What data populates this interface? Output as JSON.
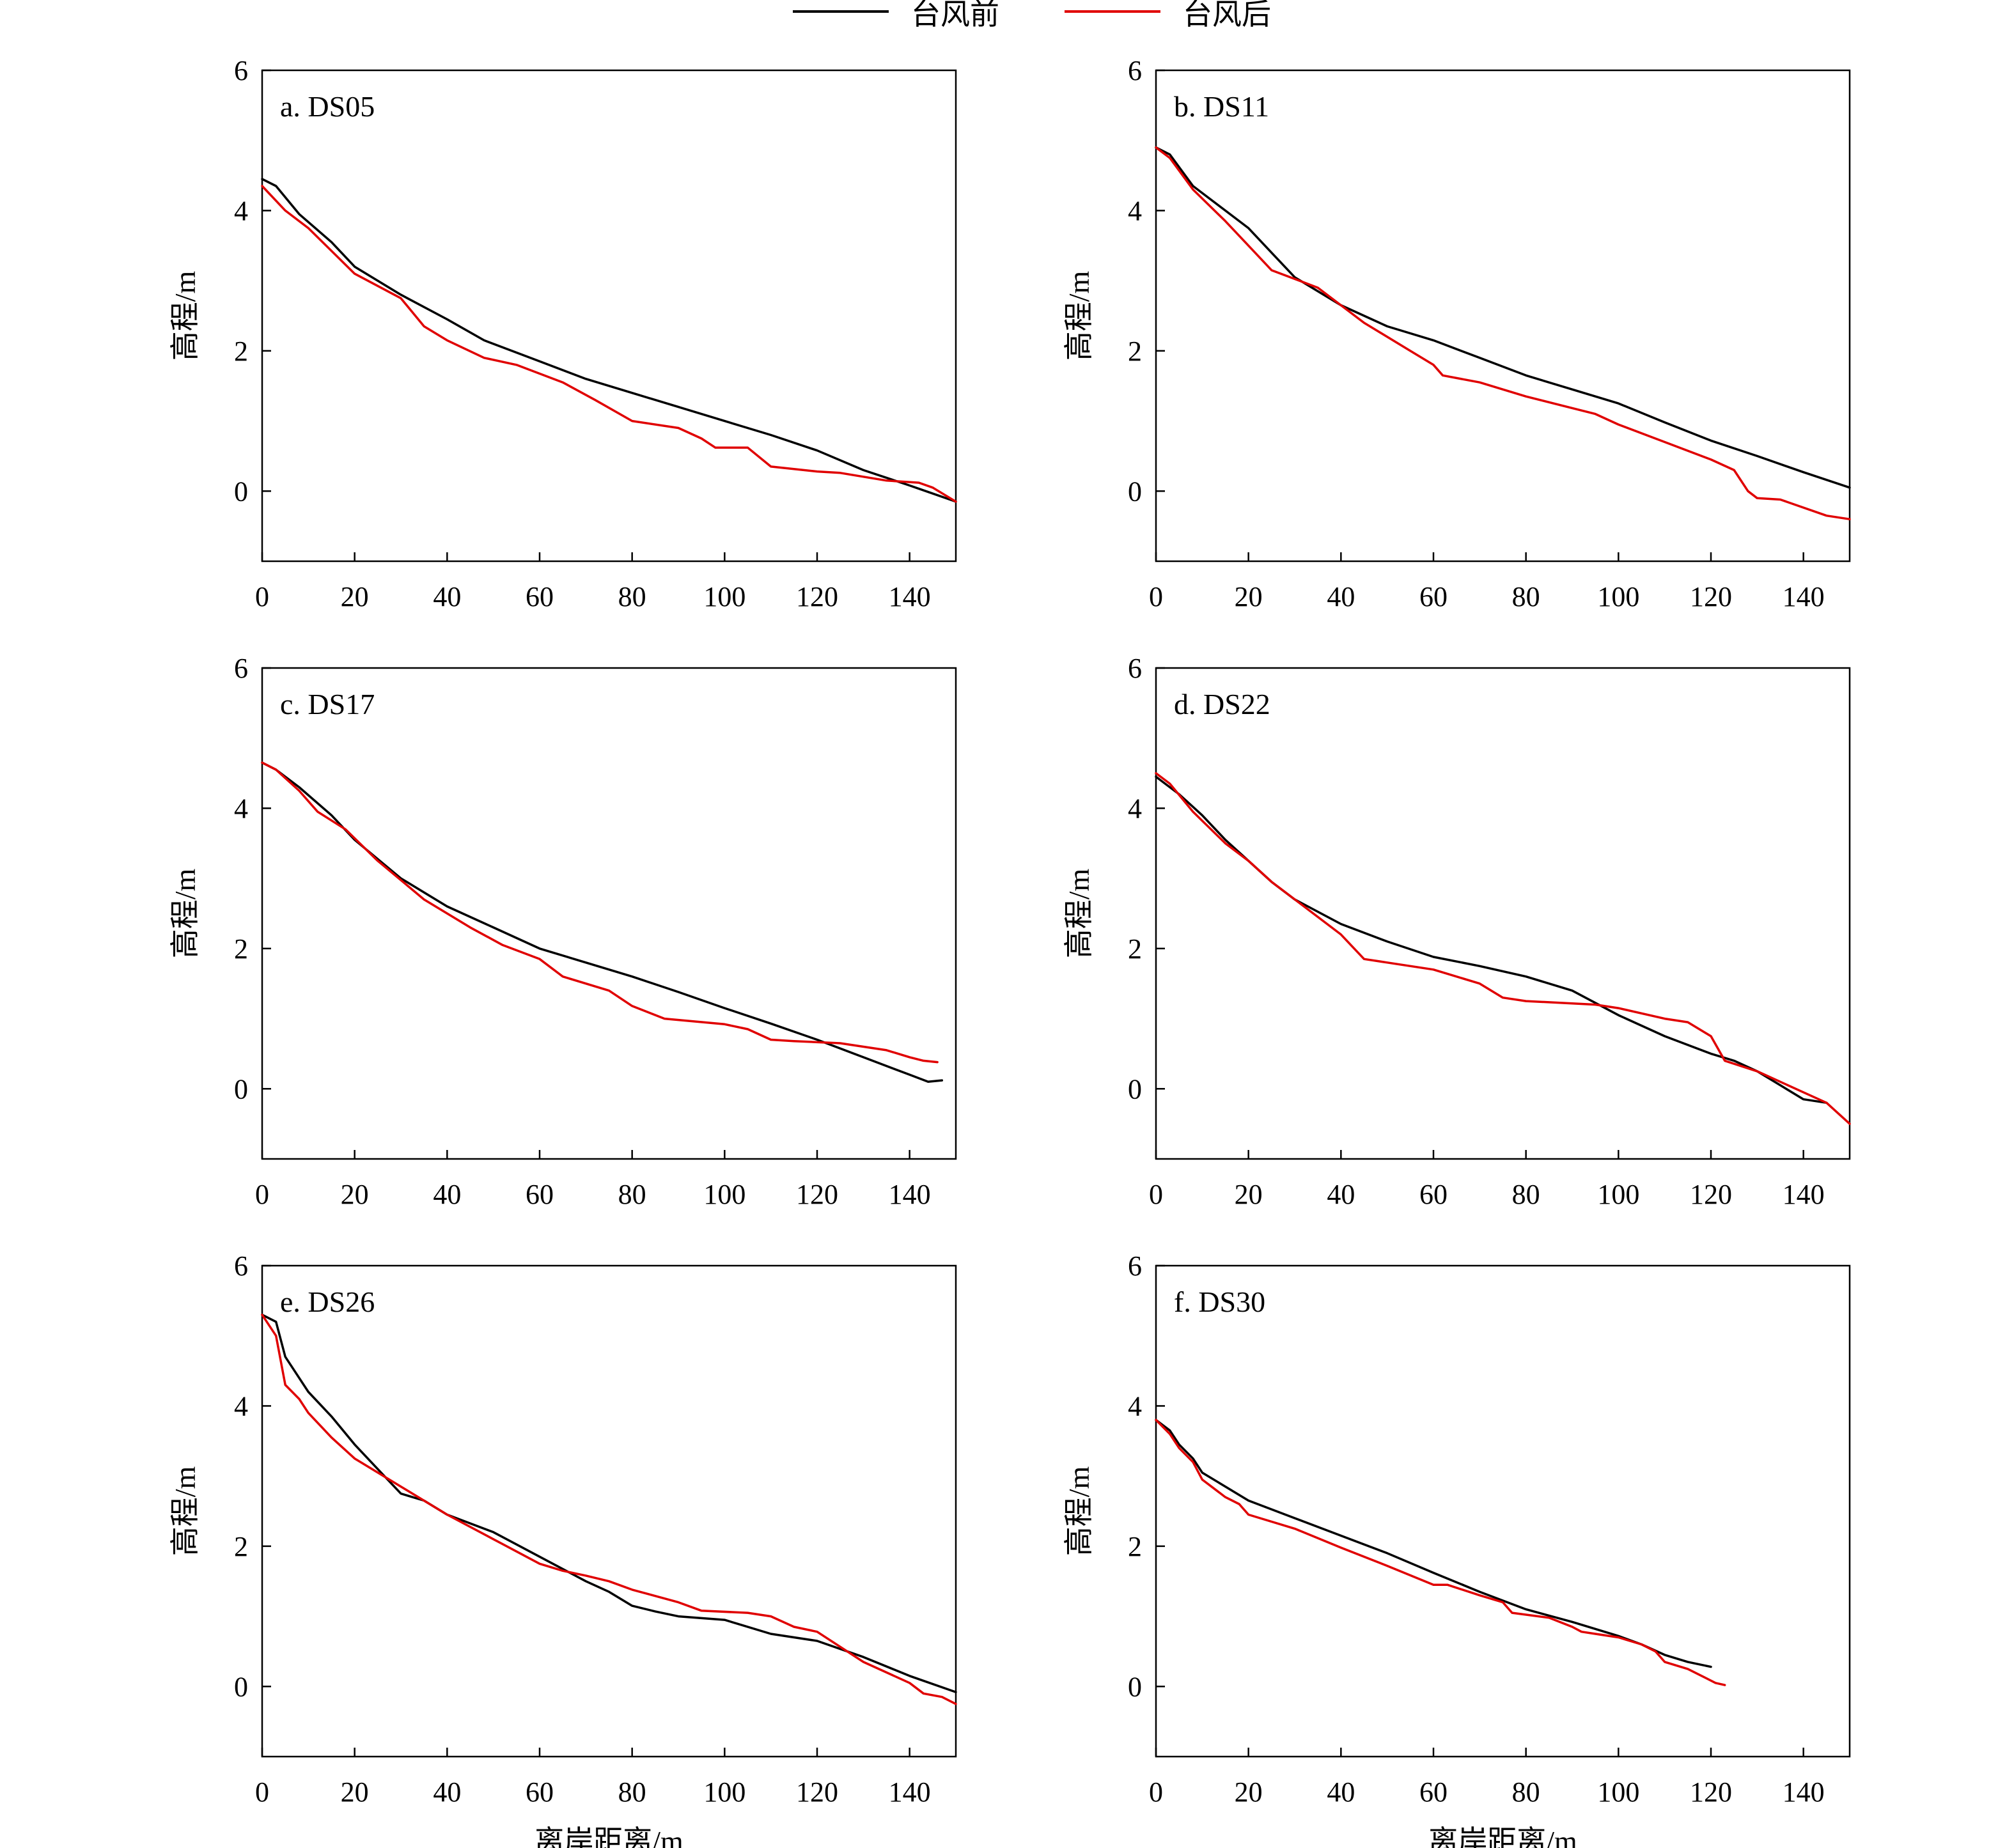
{
  "legend": [
    {
      "label": "台风前",
      "color": "#000000"
    },
    {
      "label": "台风后",
      "color": "#e00000"
    }
  ],
  "axes": {
    "xlabel": "离岸距离/m",
    "ylabel": "高程/m",
    "xlim": [
      0,
      150
    ],
    "ylim": [
      -1,
      6
    ],
    "xticks": [
      "0",
      "20",
      "40",
      "60",
      "80",
      "100",
      "120",
      "140"
    ],
    "yticks": [
      "0",
      "2",
      "4",
      "6"
    ]
  },
  "chart_data": [
    {
      "type": "line",
      "title": "a. DS05",
      "xlabel": "离岸距离/m",
      "ylabel": "高程/m",
      "xlim": [
        0,
        150
      ],
      "ylim": [
        -1,
        6
      ],
      "series": [
        {
          "name": "台风前",
          "color": "#000000",
          "x": [
            0,
            3,
            8,
            15,
            20,
            30,
            40,
            48,
            60,
            70,
            80,
            90,
            100,
            110,
            120,
            130,
            140,
            150
          ],
          "y": [
            4.45,
            4.35,
            3.95,
            3.55,
            3.2,
            2.8,
            2.45,
            2.15,
            1.85,
            1.6,
            1.4,
            1.2,
            1.0,
            0.8,
            0.58,
            0.3,
            0.08,
            -0.15
          ]
        },
        {
          "name": "台风后",
          "color": "#e00000",
          "x": [
            0,
            5,
            10,
            20,
            30,
            35,
            40,
            48,
            55,
            65,
            72,
            80,
            90,
            95,
            98,
            105,
            110,
            120,
            125,
            135,
            142,
            145,
            150
          ],
          "y": [
            4.35,
            4.0,
            3.75,
            3.1,
            2.75,
            2.35,
            2.15,
            1.9,
            1.8,
            1.55,
            1.3,
            1.0,
            0.9,
            0.75,
            0.62,
            0.62,
            0.35,
            0.28,
            0.26,
            0.15,
            0.12,
            0.05,
            -0.15
          ]
        }
      ]
    },
    {
      "type": "line",
      "title": "b. DS11",
      "xlabel": "离岸距离/m",
      "ylabel": "高程/m",
      "xlim": [
        0,
        150
      ],
      "ylim": [
        -1,
        6
      ],
      "series": [
        {
          "name": "台风前",
          "color": "#000000",
          "x": [
            0,
            3,
            8,
            15,
            20,
            25,
            30,
            40,
            50,
            60,
            70,
            80,
            90,
            100,
            110,
            120,
            130,
            140,
            150
          ],
          "y": [
            4.9,
            4.8,
            4.35,
            4.0,
            3.75,
            3.4,
            3.05,
            2.65,
            2.35,
            2.15,
            1.9,
            1.65,
            1.45,
            1.25,
            0.98,
            0.72,
            0.5,
            0.27,
            0.05
          ]
        },
        {
          "name": "台风后",
          "color": "#e00000",
          "x": [
            0,
            3,
            8,
            15,
            20,
            25,
            35,
            45,
            55,
            60,
            62,
            70,
            80,
            95,
            100,
            110,
            120,
            125,
            128,
            130,
            135,
            145,
            150
          ],
          "y": [
            4.9,
            4.75,
            4.3,
            3.85,
            3.5,
            3.15,
            2.9,
            2.4,
            2.0,
            1.8,
            1.65,
            1.55,
            1.35,
            1.1,
            0.95,
            0.7,
            0.45,
            0.3,
            0.0,
            -0.1,
            -0.12,
            -0.35,
            -0.4
          ]
        }
      ]
    },
    {
      "type": "line",
      "title": "c. DS17",
      "xlabel": "离岸距离/m",
      "ylabel": "高程/m",
      "xlim": [
        0,
        150
      ],
      "ylim": [
        -1,
        6
      ],
      "series": [
        {
          "name": "台风前",
          "color": "#000000",
          "x": [
            0,
            3,
            8,
            15,
            20,
            30,
            40,
            50,
            60,
            70,
            80,
            90,
            100,
            110,
            120,
            130,
            140,
            144,
            147
          ],
          "y": [
            4.65,
            4.55,
            4.3,
            3.9,
            3.55,
            3.0,
            2.6,
            2.3,
            2.0,
            1.8,
            1.6,
            1.38,
            1.15,
            0.93,
            0.7,
            0.45,
            0.2,
            0.1,
            0.12
          ]
        },
        {
          "name": "台风后",
          "color": "#e00000",
          "x": [
            0,
            3,
            8,
            12,
            18,
            25,
            35,
            45,
            52,
            60,
            65,
            75,
            80,
            87,
            100,
            105,
            110,
            115,
            125,
            135,
            140,
            143,
            146
          ],
          "y": [
            4.65,
            4.55,
            4.25,
            3.95,
            3.7,
            3.25,
            2.7,
            2.3,
            2.05,
            1.85,
            1.6,
            1.4,
            1.18,
            1.0,
            0.92,
            0.85,
            0.7,
            0.68,
            0.65,
            0.55,
            0.45,
            0.4,
            0.38
          ]
        }
      ]
    },
    {
      "type": "line",
      "title": "d. DS22",
      "xlabel": "离岸距离/m",
      "ylabel": "高程/m",
      "xlim": [
        0,
        150
      ],
      "ylim": [
        -1,
        6
      ],
      "series": [
        {
          "name": "台风前",
          "color": "#000000",
          "x": [
            0,
            5,
            10,
            15,
            20,
            25,
            30,
            40,
            50,
            60,
            70,
            80,
            90,
            100,
            110,
            120,
            125,
            130,
            135,
            140,
            145
          ],
          "y": [
            4.45,
            4.2,
            3.9,
            3.55,
            3.25,
            2.95,
            2.7,
            2.35,
            2.1,
            1.88,
            1.75,
            1.6,
            1.4,
            1.05,
            0.75,
            0.5,
            0.4,
            0.25,
            0.05,
            -0.15,
            -0.2
          ]
        },
        {
          "name": "台风后",
          "color": "#e00000",
          "x": [
            0,
            3,
            8,
            15,
            20,
            25,
            32,
            40,
            45,
            50,
            60,
            70,
            75,
            80,
            95,
            100,
            110,
            115,
            120,
            123,
            130,
            140,
            145,
            150
          ],
          "y": [
            4.5,
            4.35,
            3.95,
            3.5,
            3.25,
            2.95,
            2.6,
            2.2,
            1.85,
            1.8,
            1.7,
            1.5,
            1.3,
            1.25,
            1.2,
            1.15,
            1.0,
            0.95,
            0.75,
            0.4,
            0.25,
            -0.05,
            -0.2,
            -0.5
          ]
        }
      ]
    },
    {
      "type": "line",
      "title": "e. DS26",
      "xlabel": "离岸距离/m",
      "ylabel": "高程/m",
      "xlim": [
        0,
        150
      ],
      "ylim": [
        -1,
        6
      ],
      "series": [
        {
          "name": "台风前",
          "color": "#000000",
          "x": [
            0,
            3,
            5,
            10,
            15,
            20,
            25,
            30,
            35,
            40,
            50,
            60,
            70,
            75,
            80,
            85,
            90,
            100,
            110,
            120,
            130,
            140,
            150
          ],
          "y": [
            5.3,
            5.2,
            4.7,
            4.2,
            3.85,
            3.45,
            3.1,
            2.75,
            2.65,
            2.45,
            2.2,
            1.85,
            1.5,
            1.35,
            1.15,
            1.07,
            1.0,
            0.95,
            0.75,
            0.65,
            0.42,
            0.15,
            -0.08
          ]
        },
        {
          "name": "台风后",
          "color": "#e00000",
          "x": [
            0,
            3,
            5,
            8,
            10,
            15,
            20,
            30,
            40,
            50,
            60,
            65,
            70,
            75,
            80,
            90,
            95,
            105,
            110,
            115,
            120,
            130,
            140,
            143,
            147,
            150
          ],
          "y": [
            5.3,
            5.0,
            4.3,
            4.1,
            3.9,
            3.55,
            3.25,
            2.85,
            2.45,
            2.1,
            1.75,
            1.65,
            1.58,
            1.5,
            1.38,
            1.2,
            1.08,
            1.05,
            1.0,
            0.85,
            0.78,
            0.35,
            0.05,
            -0.1,
            -0.15,
            -0.25
          ]
        }
      ]
    },
    {
      "type": "line",
      "title": "f. DS30",
      "xlabel": "离岸距离/m",
      "ylabel": "高程/m",
      "xlim": [
        0,
        150
      ],
      "ylim": [
        -1,
        6
      ],
      "series": [
        {
          "name": "台风前",
          "color": "#000000",
          "x": [
            0,
            3,
            5,
            8,
            10,
            15,
            20,
            30,
            40,
            50,
            60,
            70,
            80,
            90,
            100,
            105,
            110,
            115,
            120
          ],
          "y": [
            3.8,
            3.65,
            3.45,
            3.25,
            3.05,
            2.85,
            2.65,
            2.4,
            2.15,
            1.9,
            1.62,
            1.35,
            1.1,
            0.92,
            0.72,
            0.6,
            0.45,
            0.35,
            0.28
          ]
        },
        {
          "name": "台风后",
          "color": "#e00000",
          "x": [
            0,
            3,
            5,
            8,
            10,
            15,
            18,
            20,
            30,
            40,
            50,
            60,
            63,
            70,
            75,
            77,
            85,
            90,
            92,
            95,
            100,
            105,
            108,
            110,
            115,
            118,
            121,
            123
          ],
          "y": [
            3.8,
            3.6,
            3.4,
            3.2,
            2.95,
            2.7,
            2.6,
            2.45,
            2.25,
            1.98,
            1.72,
            1.45,
            1.45,
            1.3,
            1.2,
            1.05,
            0.98,
            0.85,
            0.78,
            0.75,
            0.7,
            0.6,
            0.5,
            0.35,
            0.25,
            0.15,
            0.05,
            0.02
          ]
        }
      ]
    }
  ]
}
